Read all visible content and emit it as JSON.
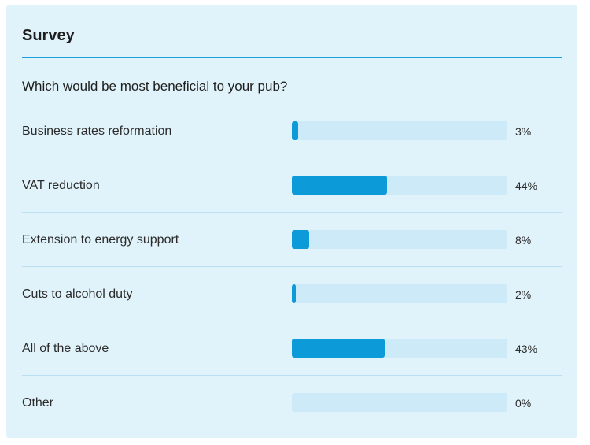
{
  "survey": {
    "title": "Survey",
    "question": "Which would be most beneficial to your pub?",
    "accent_color": "#1aa0d6",
    "bar_color": "#0c9ad8",
    "track_color": "#cceaf7",
    "background_color": "#e1f3fa",
    "options": [
      {
        "label": "Business rates reformation",
        "percent": 3,
        "percent_label": "3%"
      },
      {
        "label": "VAT reduction",
        "percent": 44,
        "percent_label": "44%"
      },
      {
        "label": "Extension to energy support",
        "percent": 8,
        "percent_label": "8%"
      },
      {
        "label": "Cuts to alcohol duty",
        "percent": 2,
        "percent_label": "2%"
      },
      {
        "label": "All of the above",
        "percent": 43,
        "percent_label": "43%"
      },
      {
        "label": "Other",
        "percent": 0,
        "percent_label": "0%"
      }
    ]
  }
}
